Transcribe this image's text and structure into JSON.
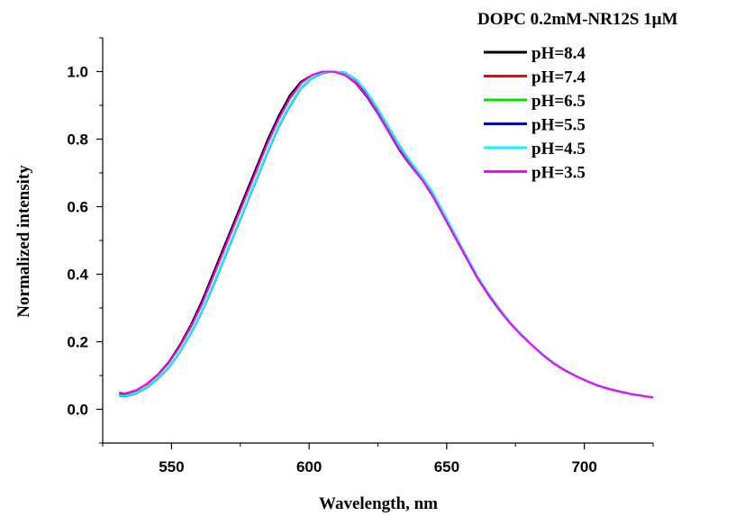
{
  "chart_data": {
    "type": "line",
    "title": "DOPC 0.2mM-NR12S 1μM",
    "xlabel": "Wavelength, nm",
    "ylabel": "Normalized intensity",
    "xlim": [
      525,
      725
    ],
    "ylim": [
      -0.1,
      1.1
    ],
    "xticks": [
      550,
      600,
      650,
      700
    ],
    "yticks": [
      0.0,
      0.2,
      0.4,
      0.6,
      0.8,
      1.0
    ],
    "xtick_labels": [
      "550",
      "600",
      "650",
      "700"
    ],
    "ytick_labels": [
      "0.0",
      "0.2",
      "0.4",
      "0.6",
      "0.8",
      "1.0"
    ],
    "grid": false,
    "legend_position": "top-right",
    "series": [
      {
        "name": "pH=8.4",
        "color": "#000000",
        "x": [
          531,
          533,
          537,
          541,
          545,
          549,
          553,
          557,
          561,
          565,
          569,
          573,
          577,
          581,
          585,
          589,
          593,
          597,
          601,
          605,
          609,
          613,
          617,
          621,
          625,
          629,
          633,
          637,
          641,
          645,
          649,
          653,
          657,
          661,
          665,
          669,
          673,
          677,
          681,
          685,
          689,
          693,
          697,
          701,
          705,
          709,
          713,
          717,
          721,
          725
        ],
        "y": [
          0.048,
          0.045,
          0.055,
          0.075,
          0.103,
          0.14,
          0.19,
          0.25,
          0.32,
          0.4,
          0.48,
          0.56,
          0.64,
          0.72,
          0.8,
          0.87,
          0.93,
          0.97,
          0.99,
          1.0,
          1.0,
          0.99,
          0.965,
          0.925,
          0.875,
          0.82,
          0.765,
          0.72,
          0.68,
          0.63,
          0.57,
          0.51,
          0.45,
          0.39,
          0.34,
          0.295,
          0.255,
          0.22,
          0.19,
          0.16,
          0.135,
          0.115,
          0.098,
          0.083,
          0.07,
          0.06,
          0.052,
          0.045,
          0.04,
          0.035
        ]
      },
      {
        "name": "pH=7.4",
        "color": "#ff0000",
        "x": [
          531,
          533,
          537,
          541,
          545,
          549,
          553,
          557,
          561,
          565,
          569,
          573,
          577,
          581,
          585,
          589,
          593,
          597,
          601,
          605,
          609,
          613,
          617,
          621,
          625,
          629,
          633,
          637,
          641,
          645,
          649,
          653,
          657,
          661,
          665,
          669,
          673,
          677,
          681,
          685,
          689,
          693,
          697,
          701,
          705,
          709,
          713,
          717,
          721,
          725
        ],
        "y": [
          0.05,
          0.046,
          0.055,
          0.074,
          0.101,
          0.137,
          0.185,
          0.243,
          0.31,
          0.39,
          0.47,
          0.55,
          0.63,
          0.71,
          0.79,
          0.86,
          0.92,
          0.965,
          0.99,
          1.0,
          1.0,
          0.99,
          0.968,
          0.93,
          0.878,
          0.823,
          0.77,
          0.722,
          0.682,
          0.632,
          0.572,
          0.512,
          0.452,
          0.392,
          0.342,
          0.297,
          0.256,
          0.221,
          0.19,
          0.161,
          0.136,
          0.115,
          0.098,
          0.083,
          0.07,
          0.06,
          0.052,
          0.045,
          0.04,
          0.035
        ]
      },
      {
        "name": "pH=6.5",
        "color": "#00e000",
        "x": [
          531,
          533,
          537,
          541,
          545,
          549,
          553,
          557,
          561,
          565,
          569,
          573,
          577,
          581,
          585,
          589,
          593,
          597,
          601,
          605,
          609,
          613,
          617,
          621,
          625,
          629,
          633,
          637,
          641,
          645,
          649,
          653,
          657,
          661,
          665,
          669,
          673,
          677,
          681,
          685,
          689,
          693,
          697,
          701,
          705,
          709,
          713,
          717,
          721,
          725
        ],
        "y": [
          0.042,
          0.04,
          0.048,
          0.066,
          0.092,
          0.125,
          0.17,
          0.226,
          0.29,
          0.365,
          0.445,
          0.525,
          0.605,
          0.685,
          0.765,
          0.84,
          0.9,
          0.952,
          0.982,
          0.996,
          1.0,
          0.998,
          0.978,
          0.94,
          0.89,
          0.835,
          0.78,
          0.732,
          0.69,
          0.642,
          0.58,
          0.518,
          0.456,
          0.396,
          0.345,
          0.3,
          0.258,
          0.223,
          0.191,
          0.162,
          0.137,
          0.116,
          0.099,
          0.084,
          0.071,
          0.061,
          0.053,
          0.046,
          0.04,
          0.035
        ]
      },
      {
        "name": "pH=5.5",
        "color": "#0000c0",
        "x": [
          531,
          533,
          537,
          541,
          545,
          549,
          553,
          557,
          561,
          565,
          569,
          573,
          577,
          581,
          585,
          589,
          593,
          597,
          601,
          605,
          609,
          613,
          617,
          621,
          625,
          629,
          633,
          637,
          641,
          645,
          649,
          653,
          657,
          661,
          665,
          669,
          673,
          677,
          681,
          685,
          689,
          693,
          697,
          701,
          705,
          709,
          713,
          717,
          721,
          725
        ],
        "y": [
          0.04,
          0.038,
          0.046,
          0.064,
          0.09,
          0.123,
          0.168,
          0.224,
          0.288,
          0.362,
          0.442,
          0.522,
          0.602,
          0.682,
          0.762,
          0.837,
          0.897,
          0.95,
          0.98,
          0.995,
          1.0,
          0.997,
          0.976,
          0.938,
          0.887,
          0.832,
          0.776,
          0.73,
          0.688,
          0.64,
          0.58,
          0.518,
          0.456,
          0.396,
          0.345,
          0.3,
          0.258,
          0.223,
          0.191,
          0.162,
          0.137,
          0.116,
          0.099,
          0.084,
          0.071,
          0.061,
          0.053,
          0.046,
          0.04,
          0.035
        ]
      },
      {
        "name": "pH=4.5",
        "color": "#00ffff",
        "x": [
          531,
          533,
          537,
          541,
          545,
          549,
          553,
          557,
          561,
          565,
          569,
          573,
          577,
          581,
          585,
          589,
          593,
          597,
          601,
          605,
          609,
          613,
          617,
          621,
          625,
          629,
          633,
          637,
          641,
          645,
          649,
          653,
          657,
          661,
          665,
          669,
          673,
          677,
          681,
          685,
          689,
          693,
          697,
          701,
          705,
          709,
          713,
          717,
          721,
          725
        ],
        "y": [
          0.041,
          0.039,
          0.047,
          0.065,
          0.091,
          0.124,
          0.169,
          0.225,
          0.289,
          0.364,
          0.444,
          0.524,
          0.604,
          0.684,
          0.764,
          0.839,
          0.899,
          0.951,
          0.981,
          0.996,
          1.0,
          0.997,
          0.977,
          0.939,
          0.888,
          0.833,
          0.778,
          0.731,
          0.689,
          0.641,
          0.58,
          0.518,
          0.456,
          0.396,
          0.345,
          0.3,
          0.258,
          0.223,
          0.191,
          0.162,
          0.137,
          0.116,
          0.099,
          0.084,
          0.071,
          0.061,
          0.053,
          0.046,
          0.04,
          0.035
        ]
      },
      {
        "name": "pH=3.5",
        "color": "#ff00ff",
        "x": [
          531,
          533,
          537,
          541,
          545,
          549,
          553,
          557,
          561,
          565,
          569,
          573,
          577,
          581,
          585,
          589,
          593,
          597,
          601,
          605,
          609,
          613,
          617,
          621,
          625,
          629,
          633,
          637,
          641,
          645,
          649,
          653,
          657,
          661,
          665,
          669,
          673,
          677,
          681,
          685,
          689,
          693,
          697,
          701,
          705,
          709,
          713,
          717,
          721,
          725
        ],
        "y": [
          0.05,
          0.047,
          0.056,
          0.075,
          0.102,
          0.138,
          0.186,
          0.244,
          0.311,
          0.39,
          0.47,
          0.55,
          0.63,
          0.71,
          0.79,
          0.86,
          0.92,
          0.965,
          0.99,
          1.0,
          1.0,
          0.99,
          0.967,
          0.928,
          0.876,
          0.821,
          0.768,
          0.721,
          0.681,
          0.631,
          0.571,
          0.511,
          0.451,
          0.391,
          0.341,
          0.296,
          0.255,
          0.22,
          0.189,
          0.16,
          0.135,
          0.115,
          0.098,
          0.083,
          0.07,
          0.06,
          0.052,
          0.045,
          0.04,
          0.035
        ]
      }
    ]
  }
}
